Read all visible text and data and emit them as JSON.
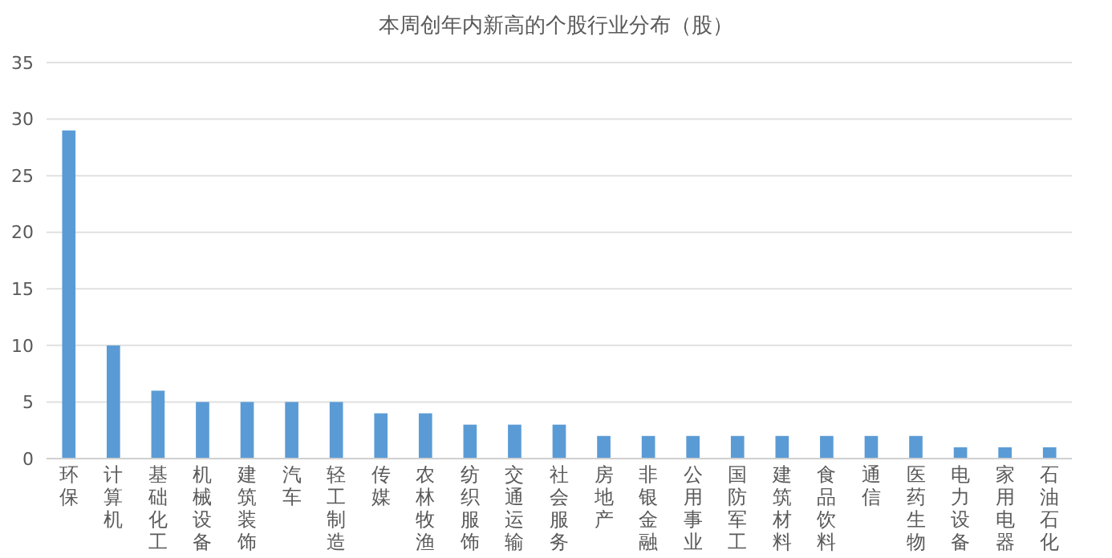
{
  "chart_data": {
    "type": "bar",
    "title": "本周创年内新高的个股行业分布（股）",
    "categories": [
      "环保",
      "计算机",
      "基础化工",
      "机械设备",
      "建筑装饰",
      "汽车",
      "轻工制造",
      "传媒",
      "农林牧渔",
      "纺织服饰",
      "交通运输",
      "社会服务",
      "房地产",
      "非银金融",
      "公用事业",
      "国防军工",
      "建筑材料",
      "食品饮料",
      "通信",
      "医药生物",
      "电力设备",
      "家用电器",
      "石油石化"
    ],
    "values": [
      29,
      10,
      6,
      5,
      5,
      5,
      5,
      4,
      4,
      3,
      3,
      3,
      2,
      2,
      2,
      2,
      2,
      2,
      2,
      2,
      1,
      1,
      1
    ],
    "color": "#5b9bd5",
    "ylim": [
      0,
      35
    ],
    "yticks": [
      0,
      5,
      10,
      15,
      20,
      25,
      30,
      35
    ],
    "grid": "y"
  }
}
